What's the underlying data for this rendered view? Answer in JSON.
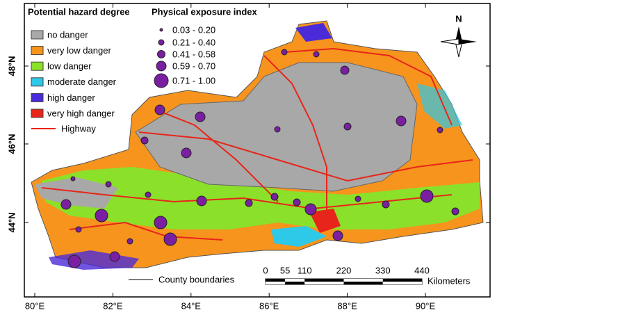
{
  "legend": {
    "hazard_title": "Potential hazard degree",
    "hazard_items": [
      {
        "label": "no danger",
        "color": "#a8a8a8"
      },
      {
        "label": "very low danger",
        "color": "#f7941d"
      },
      {
        "label": "low danger",
        "color": "#8be02a"
      },
      {
        "label": "moderate danger",
        "color": "#2ec8e8"
      },
      {
        "label": "high danger",
        "color": "#4b2bd8"
      },
      {
        "label": "very high danger",
        "color": "#e8251a"
      }
    ],
    "highway": "Highway",
    "exposure_title": "Physical exposure index",
    "exposure_items": [
      "0.03 - 0.20",
      "0.21 - 0.40",
      "0.41 - 0.58",
      "0.59 - 0.70",
      "0.71 - 1.00"
    ]
  },
  "north": "N",
  "county_boundaries": "County boundaries",
  "scale": {
    "ticks": [
      0,
      55,
      110,
      220,
      330,
      440
    ],
    "unit": "Kilometers"
  },
  "axes": {
    "lat_labels": [
      "48°N",
      "46°N",
      "44°N"
    ],
    "lon_labels": [
      "80°E",
      "82°E",
      "84°E",
      "86°E",
      "88°E",
      "90°E"
    ]
  }
}
